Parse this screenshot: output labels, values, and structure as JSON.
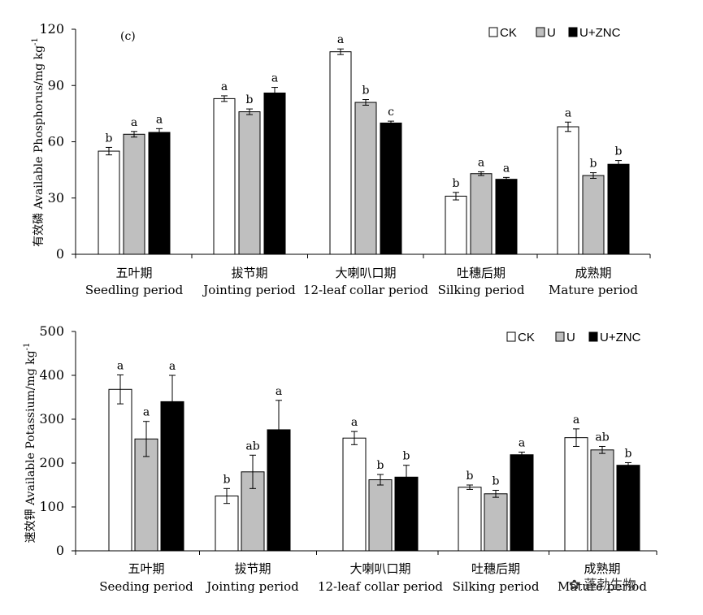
{
  "colors": {
    "CK": "#ffffff",
    "U": "#bfbfbf",
    "U+ZNC": "#000000"
  },
  "watermark": {
    "text": "蓬勃生物"
  },
  "chart_data": [
    {
      "type": "bar",
      "panel_label": "(c)",
      "ylabel": "有效磷 Available Phosphorus/mg kg",
      "ylabel_sup": "-1",
      "ylim": [
        0,
        120
      ],
      "yticks": [
        0,
        30,
        60,
        90,
        120
      ],
      "categories": [
        {
          "zh": "五叶期",
          "en": "Seedling period"
        },
        {
          "zh": "拔节期",
          "en": "Jointing period"
        },
        {
          "zh": "大喇叭口期",
          "en": "12-leaf collar period"
        },
        {
          "zh": "吐穗后期",
          "en": "Silking period"
        },
        {
          "zh": "成熟期",
          "en": "Mature period"
        }
      ],
      "legend": [
        "CK",
        "U",
        "U+ZNC"
      ],
      "series": [
        {
          "name": "CK",
          "values": [
            55,
            83,
            108,
            31,
            68
          ],
          "errors": [
            2,
            1.5,
            1.5,
            2,
            2.5
          ],
          "letters": [
            "b",
            "a",
            "a",
            "b",
            "a"
          ]
        },
        {
          "name": "U",
          "values": [
            64,
            76,
            81,
            43,
            42
          ],
          "errors": [
            1.5,
            1.5,
            1.5,
            1,
            1.5
          ],
          "letters": [
            "a",
            "b",
            "b",
            "a",
            "b"
          ]
        },
        {
          "name": "U+ZNC",
          "values": [
            65,
            86,
            70,
            40,
            48
          ],
          "errors": [
            2,
            3,
            1,
            1,
            2
          ],
          "letters": [
            "a",
            "a",
            "c",
            "a",
            "b"
          ]
        }
      ]
    },
    {
      "type": "bar",
      "ylabel": "速效钾 Available Potassium/mg kg",
      "ylabel_sup": "-1",
      "ylim": [
        0,
        500
      ],
      "yticks": [
        0,
        100,
        200,
        300,
        400,
        500
      ],
      "categories": [
        {
          "zh": "五叶期",
          "en": "Seeding period"
        },
        {
          "zh": "拔节期",
          "en": "Jointing period"
        },
        {
          "zh": "大喇叭口期",
          "en": "12-leaf collar period"
        },
        {
          "zh": "吐穗后期",
          "en": "Silking period"
        },
        {
          "zh": "成熟期",
          "en": "Mature period"
        }
      ],
      "legend": [
        "CK",
        "U",
        "U+ZNC"
      ],
      "series": [
        {
          "name": "CK",
          "values": [
            368,
            125,
            257,
            145,
            258
          ],
          "errors": [
            33,
            17,
            15,
            5,
            20
          ],
          "letters": [
            "a",
            "b",
            "a",
            "b",
            "a"
          ]
        },
        {
          "name": "U",
          "values": [
            255,
            180,
            162,
            130,
            230
          ],
          "errors": [
            40,
            38,
            12,
            8,
            8
          ],
          "letters": [
            "a",
            "ab",
            "b",
            "b",
            "ab"
          ]
        },
        {
          "name": "U+ZNC",
          "values": [
            340,
            276,
            168,
            219,
            195
          ],
          "errors": [
            60,
            67,
            27,
            6,
            6
          ],
          "letters": [
            "a",
            "a",
            "b",
            "a",
            "b"
          ]
        }
      ]
    }
  ]
}
